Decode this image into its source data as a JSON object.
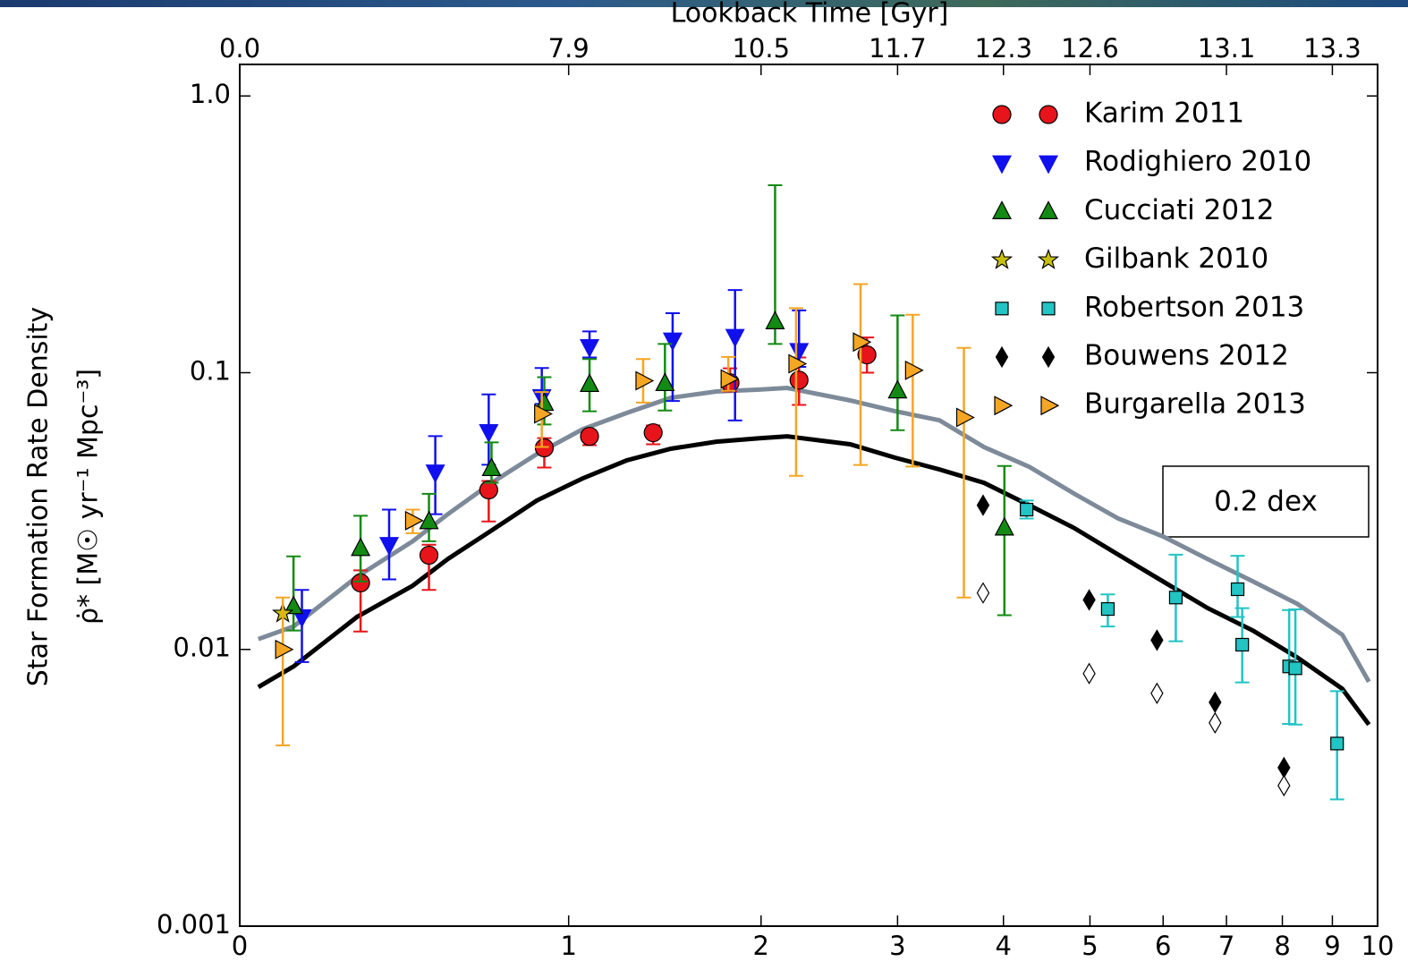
{
  "chart_data": {
    "type": "scatter",
    "xlabel": "Lookback Time [Gyr]",
    "ylabel": "Star Formation Rate Density",
    "ylabel2": "ρ̇* [M☉ yr⁻¹ Mpc⁻³]",
    "annotation": "0.2 dex",
    "xscale": "log(1+z)",
    "yscale": "log",
    "xlim": [
      0,
      10
    ],
    "ylim": [
      0.001,
      1.3
    ],
    "xticks": [
      0,
      1,
      2,
      3,
      4,
      5,
      6,
      7,
      8,
      9,
      10
    ],
    "x2ticks": [
      {
        "value": 0,
        "label": "0.0"
      },
      {
        "value": 1,
        "label": "7.9"
      },
      {
        "value": 2,
        "label": "10.5"
      },
      {
        "value": 3,
        "label": "11.7"
      },
      {
        "value": 4,
        "label": "12.3"
      },
      {
        "value": 5,
        "label": "12.6"
      },
      {
        "value": 7,
        "label": "13.1"
      },
      {
        "value": 9,
        "label": "13.3"
      }
    ],
    "yticks": [
      0.001,
      0.01,
      0.1,
      {
        "value": 1,
        "label": "1.0"
      }
    ],
    "legend": "upper right",
    "series": [
      {
        "name": "Karim 2011",
        "marker": "circle",
        "color": "#e8141b",
        "x": [
          0.29,
          0.49,
          0.69,
          0.9,
          1.09,
          1.39,
          1.81,
          2.25,
          2.75
        ],
        "values": [
          0.0174,
          0.0219,
          0.0377,
          0.0535,
          0.0589,
          0.0607,
          0.092,
          0.094,
          0.116
        ],
        "yerr_low": [
          0.0058,
          0.0055,
          0.0087,
          0.0081,
          0.0042,
          0.0056,
          0.0065,
          0.0175,
          0.016
        ],
        "yerr_high": [
          0.0019,
          0.002,
          0.0029,
          0.0045,
          0.0031,
          0.0038,
          0.0117,
          0.0195,
          0.018
        ]
      },
      {
        "name": "Rodighiero 2010",
        "marker": "triangle-down",
        "color": "#1010ee",
        "x": [
          0.14,
          0.37,
          0.51,
          0.69,
          0.89,
          1.09,
          1.49,
          1.84,
          2.25
        ],
        "values": [
          0.0131,
          0.0239,
          0.0437,
          0.0611,
          0.0818,
          0.124,
          0.131,
          0.135,
          0.12
        ],
        "yerr_low": [
          0.0041,
          0.006,
          0.0129,
          0.0146,
          0.0047,
          0.0105,
          0.052,
          0.0678,
          0.015
        ],
        "yerr_high": [
          0.0033,
          0.0081,
          0.0153,
          0.0224,
          0.0222,
          0.017,
          0.033,
          0.064,
          0.048
        ]
      },
      {
        "name": "Cucciati 2012",
        "marker": "triangle-up",
        "color": "#138a13",
        "x": [
          0.12,
          0.29,
          0.49,
          0.7,
          0.9,
          1.09,
          1.45,
          2.09,
          3.0,
          4.01
        ],
        "values": [
          0.0143,
          0.0232,
          0.029,
          0.0451,
          0.0776,
          0.0908,
          0.0915,
          0.153,
          0.0861,
          0.0275
        ],
        "yerr_low": [
          0.0026,
          0.0056,
          0.0044,
          0.0051,
          0.0126,
          0.0183,
          0.0185,
          0.026,
          0.0241,
          0.0142
        ],
        "yerr_high": [
          0.0074,
          0.0072,
          0.0075,
          0.0109,
          0.0187,
          0.0212,
          0.0355,
          0.323,
          0.0749,
          0.0185
        ]
      },
      {
        "name": "Gilbank 2010",
        "marker": "star",
        "color": "#c8c010",
        "x": [
          0.095
        ],
        "values": [
          0.0135
        ]
      },
      {
        "name": "Robertson 2013",
        "marker": "square",
        "color": "#22c4c4",
        "x": [
          4.25,
          5.23,
          6.19,
          7.19,
          7.27,
          8.13,
          8.25,
          9.1
        ],
        "values": [
          0.032,
          0.014,
          0.0154,
          0.0165,
          0.0104,
          0.00868,
          0.00855,
          0.00457
        ],
        "yerr_low": [
          0.0023,
          0.0019,
          0.0047,
          0.0034,
          0.0028,
          0.0033,
          0.0032,
          0.0017
        ],
        "yerr_high": [
          0.0025,
          0.0018,
          0.0066,
          0.0053,
          0.0037,
          0.0052,
          0.0054,
          0.0025
        ]
      },
      {
        "name": "Bouwens 2012",
        "marker": "diamond",
        "color": "#000000",
        "x": [
          3.79,
          4.99,
          5.91,
          6.81,
          8.03
        ],
        "values": [
          0.0332,
          0.0151,
          0.0108,
          0.00644,
          0.00374
        ]
      },
      {
        "name": "Burgarella 2013",
        "marker": "triangle-right",
        "color": "#f5a623",
        "x": [
          0.095,
          0.44,
          0.89,
          1.34,
          1.8,
          2.23,
          2.7,
          3.13,
          3.6
        ],
        "values": [
          0.01,
          0.0292,
          0.071,
          0.0935,
          0.0949,
          0.1077,
          0.129,
          0.102,
          0.0689
        ],
        "yerr_low": [
          0.0055,
          0.0029,
          0.0171,
          0.0155,
          0.0089,
          0.0653,
          0.0826,
          0.0562,
          0.0535
        ],
        "yerr_high": [
          0.0054,
          0.0028,
          0.0141,
          0.0185,
          0.0191,
          0.0633,
          0.08,
          0.06,
          0.0541
        ]
      },
      {
        "marker": "diamond-open",
        "color": "#000000",
        "x": [
          3.79,
          4.99,
          5.91,
          6.81,
          8.03
        ],
        "values": [
          0.016,
          0.00818,
          0.00694,
          0.00543,
          0.00322
        ]
      }
    ],
    "lines": [
      {
        "color": "#000000",
        "x": [
          0.04,
          0.12,
          0.28,
          0.44,
          0.55,
          0.7,
          0.87,
          1.06,
          1.26,
          1.48,
          1.73,
          1.99,
          2.17,
          2.62,
          2.98,
          3.37,
          3.8,
          4.28,
          4.8,
          5.37,
          6.0,
          6.69,
          7.46,
          8.29,
          9.21,
          9.8
        ],
        "values": [
          0.00731,
          0.00868,
          0.0131,
          0.017,
          0.0212,
          0.0269,
          0.0345,
          0.0415,
          0.0482,
          0.0531,
          0.0563,
          0.058,
          0.0589,
          0.0551,
          0.0493,
          0.0447,
          0.04,
          0.0332,
          0.0275,
          0.022,
          0.0176,
          0.0141,
          0.0117,
          0.00935,
          0.00721,
          0.00535
        ]
      },
      {
        "color": "#7d8a99",
        "x": [
          0.04,
          0.12,
          0.28,
          0.44,
          0.55,
          0.7,
          0.87,
          1.06,
          1.26,
          1.48,
          1.73,
          1.99,
          2.17,
          2.62,
          2.98,
          3.37,
          3.8,
          4.28,
          4.8,
          5.37,
          6.0,
          6.69,
          7.46,
          8.29,
          9.21,
          9.8
        ],
        "values": [
          0.0109,
          0.0121,
          0.0183,
          0.0246,
          0.0308,
          0.04,
          0.0508,
          0.0625,
          0.0715,
          0.0811,
          0.0855,
          0.0869,
          0.0881,
          0.0794,
          0.0726,
          0.0673,
          0.0538,
          0.0457,
          0.0366,
          0.0297,
          0.0256,
          0.0212,
          0.0176,
          0.0146,
          0.0113,
          0.00764
        ]
      }
    ]
  }
}
